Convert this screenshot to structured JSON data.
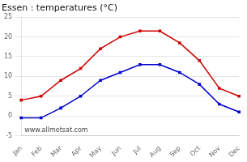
{
  "chart_data": {
    "type": "line",
    "title": "Essen : temperatures (°C)",
    "categories": [
      "Jan",
      "Feb",
      "Mar",
      "Apr",
      "May",
      "Jun",
      "Jul",
      "Aug",
      "Sep",
      "Oct",
      "Nov",
      "Dec"
    ],
    "series": [
      {
        "color": "#cc0000",
        "marker": "square",
        "values": [
          4,
          5,
          9,
          12,
          17,
          20,
          21.5,
          21.5,
          18.5,
          14,
          7,
          5
        ]
      },
      {
        "color": "#0000cc",
        "marker": "square",
        "values": [
          -0.5,
          -0.5,
          2,
          5,
          9,
          11,
          13,
          13,
          11,
          8,
          3,
          1
        ]
      }
    ],
    "ylim": [
      -5,
      25
    ],
    "yticks": [
      -5,
      0,
      5,
      10,
      15,
      20,
      25
    ],
    "grid": true,
    "annotations": [
      "www.allmetsat.com"
    ]
  }
}
